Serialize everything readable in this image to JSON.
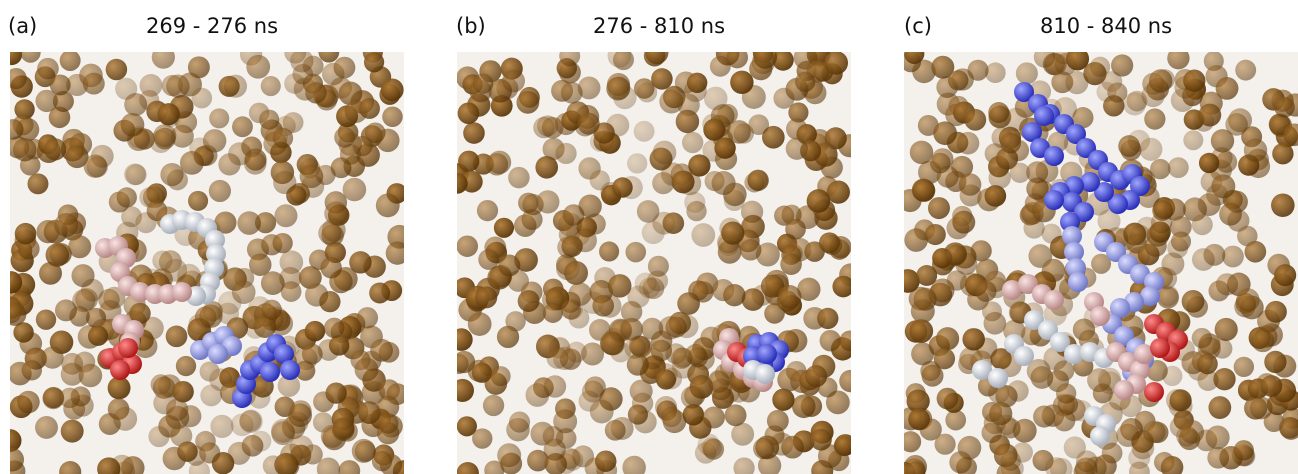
{
  "panels": [
    {
      "label": "(a)",
      "title": "269 - 276 ns"
    },
    {
      "label": "(b)",
      "title": "276 - 810 ns"
    },
    {
      "label": "(c)",
      "title": "810 - 840 ns"
    }
  ]
}
